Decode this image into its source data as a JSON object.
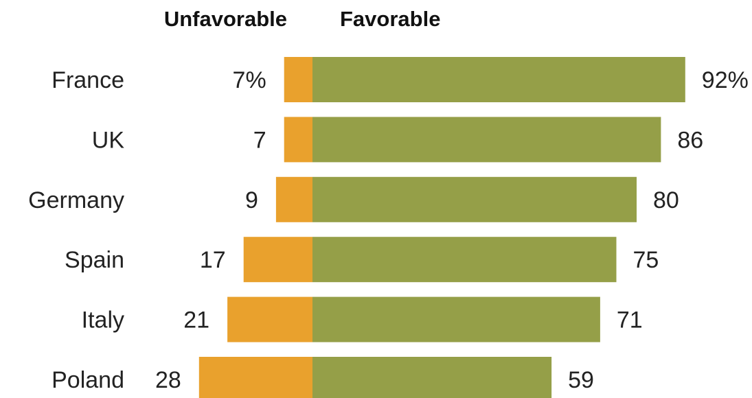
{
  "chart_data": {
    "type": "bar",
    "orientation": "horizontal-diverging",
    "headers": {
      "unfavorable": "Unfavorable",
      "favorable": "Favorable"
    },
    "categories": [
      "France",
      "UK",
      "Germany",
      "Spain",
      "Italy",
      "Poland"
    ],
    "series": [
      {
        "name": "Unfavorable",
        "color": "#E9A12D",
        "values": [
          7,
          7,
          9,
          17,
          21,
          28
        ],
        "labels": [
          "7%",
          "7",
          "9",
          "17",
          "21",
          "28"
        ]
      },
      {
        "name": "Favorable",
        "color": "#959F48",
        "values": [
          92,
          86,
          80,
          75,
          71,
          59
        ],
        "labels": [
          "92%",
          "86",
          "80",
          "75",
          "71",
          "59"
        ]
      }
    ],
    "unit": "%",
    "xlim": [
      0,
      100
    ],
    "grid": false,
    "legend": "none"
  }
}
